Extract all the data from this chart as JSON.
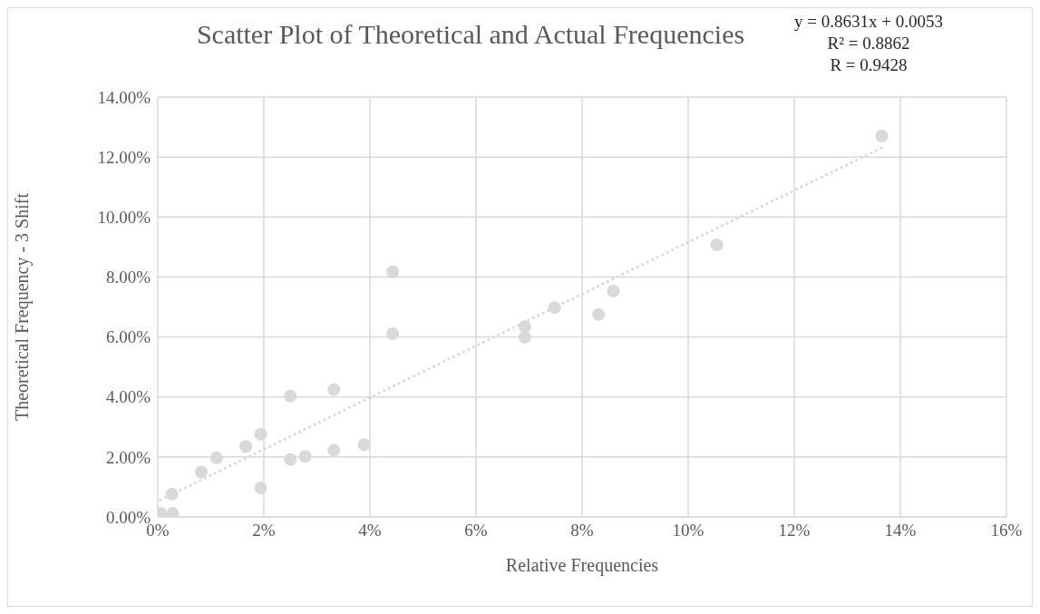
{
  "chart_data": {
    "type": "scatter",
    "title": "Scatter Plot of Theoretical and Actual Frequencies",
    "xlabel": "Relative Frequencies",
    "ylabel": "Theoretical Frequency - 3 Shift",
    "annotations": [
      "y = 0.8631x + 0.0053",
      "R² = 0.8862",
      "R = 0.9428"
    ],
    "series": [
      {
        "color": "#d9d9d9",
        "marker": "circle",
        "x": [
          0.0005,
          0.0028,
          0.0027,
          0.0082,
          0.0111,
          0.0166,
          0.0194,
          0.0194,
          0.025,
          0.0278,
          0.025,
          0.0332,
          0.0332,
          0.0389,
          0.0443,
          0.0443,
          0.0692,
          0.0692,
          0.0748,
          0.0831,
          0.0859,
          0.1054,
          0.1365
        ],
        "values": [
          0.0012,
          0.0012,
          0.0076,
          0.015,
          0.0197,
          0.0235,
          0.0276,
          0.0097,
          0.0192,
          0.0202,
          0.0403,
          0.0425,
          0.0222,
          0.0241,
          0.0817,
          0.0611,
          0.0635,
          0.0599,
          0.0698,
          0.0675,
          0.0753,
          0.0907,
          0.127
        ]
      },
      {
        "type": "line",
        "color": "#d9d9d9",
        "line_style": "dotted",
        "x": [
          0.0005,
          0.1365
        ],
        "values": [
          0.0057,
          0.1231
        ]
      }
    ],
    "xlim": [
      0,
      0.16
    ],
    "xticks": [
      {
        "value": 0,
        "label": "0%"
      },
      {
        "value": 0.02,
        "label": "2%"
      },
      {
        "value": 0.04,
        "label": "4%"
      },
      {
        "value": 0.06,
        "label": "6%"
      },
      {
        "value": 0.08,
        "label": "8%"
      },
      {
        "value": 0.1,
        "label": "10%"
      },
      {
        "value": 0.12,
        "label": "12%"
      },
      {
        "value": 0.14,
        "label": "14%"
      },
      {
        "value": 0.16,
        "label": "16%"
      }
    ],
    "ylim": [
      0,
      0.14
    ],
    "yticks": [
      {
        "value": 0,
        "label": "0.00%"
      },
      {
        "value": 0.02,
        "label": "2.00%"
      },
      {
        "value": 0.04,
        "label": "4.00%"
      },
      {
        "value": 0.06,
        "label": "6.00%"
      },
      {
        "value": 0.08,
        "label": "8.00%"
      },
      {
        "value": 0.1,
        "label": "10.00%"
      },
      {
        "value": 0.12,
        "label": "12.00%"
      },
      {
        "value": 0.14,
        "label": "14.00%"
      }
    ],
    "grid": true
  }
}
